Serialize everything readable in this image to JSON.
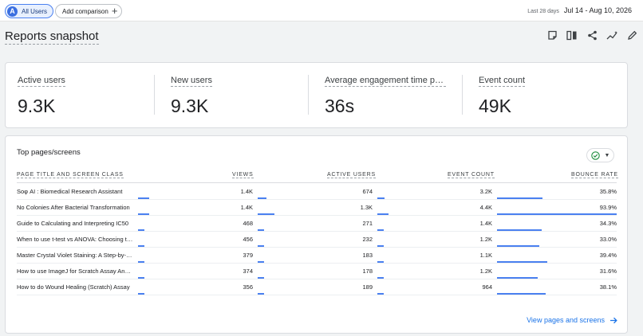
{
  "topbar": {
    "user_chip_avatar": "A",
    "user_chip_label": "All Users",
    "add_comparison_label": "Add comparison",
    "date_prefix": "Last 28 days",
    "date_range": "Jul 14 - Aug 10, 2026"
  },
  "title": "Reports snapshot",
  "title_icons": [
    "edit-comment-icon",
    "compare-columns-icon",
    "share-icon",
    "insights-icon",
    "pencil-icon"
  ],
  "metrics": [
    {
      "label": "Active users",
      "value": "9.3K"
    },
    {
      "label": "New users",
      "value": "9.3K"
    },
    {
      "label": "Average engagement time per active user",
      "value": "36s"
    },
    {
      "label": "Event count",
      "value": "49K"
    }
  ],
  "table": {
    "title": "Top pages/screens",
    "headers": {
      "page": "PAGE TITLE AND SCREEN CLASS",
      "views": "VIEWS",
      "active_users": "ACTIVE USERS",
      "event_count": "EVENT COUNT",
      "bounce_rate": "BOUNCE RATE"
    },
    "rows": [
      {
        "title": "Soφ AI : Biomedical Research Assistant",
        "views": "1.4K",
        "active_users": "674",
        "event_count": "3.2K",
        "bounce_rate": "35.8%",
        "views_frac": 0.09,
        "users_frac": 0.07,
        "events_frac": 0.06,
        "bounce_frac": 0.38
      },
      {
        "title": "No Colonies After Bacterial Transformation",
        "views": "1.4K",
        "active_users": "1.3K",
        "event_count": "4.4K",
        "bounce_rate": "93.9%",
        "views_frac": 0.09,
        "users_frac": 0.14,
        "events_frac": 0.09,
        "bounce_frac": 1.0
      },
      {
        "title": "Guide to Calculating and Interpreting IC50",
        "views": "468",
        "active_users": "271",
        "event_count": "1.4K",
        "bounce_rate": "34.3%",
        "views_frac": 0.03,
        "users_frac": 0.03,
        "events_frac": 0.03,
        "bounce_frac": 0.37
      },
      {
        "title": "When to use t-test vs ANOVA: Choosing the right test",
        "views": "456",
        "active_users": "232",
        "event_count": "1.2K",
        "bounce_rate": "33.0%",
        "views_frac": 0.03,
        "users_frac": 0.03,
        "events_frac": 0.03,
        "bounce_frac": 0.35
      },
      {
        "title": "Master Crystal Violet Staining: A Step-by-Step Guide",
        "views": "379",
        "active_users": "183",
        "event_count": "1.1K",
        "bounce_rate": "39.4%",
        "views_frac": 0.02,
        "users_frac": 0.02,
        "events_frac": 0.02,
        "bounce_frac": 0.42
      },
      {
        "title": "How to use ImageJ for Scratch Assay Analysis",
        "views": "374",
        "active_users": "178",
        "event_count": "1.2K",
        "bounce_rate": "31.6%",
        "views_frac": 0.02,
        "users_frac": 0.02,
        "events_frac": 0.03,
        "bounce_frac": 0.34
      },
      {
        "title": "How to do Wound Healing (Scratch) Assay",
        "views": "356",
        "active_users": "189",
        "event_count": "964",
        "bounce_rate": "38.1%",
        "views_frac": 0.02,
        "users_frac": 0.02,
        "events_frac": 0.02,
        "bounce_frac": 0.41
      }
    ],
    "footer_link": "View pages and screens"
  },
  "colors": {
    "accent": "#1a73e8",
    "bar": "#4a80f0",
    "chip_bg": "#e8f0fe",
    "check": "#1e8e3e"
  }
}
